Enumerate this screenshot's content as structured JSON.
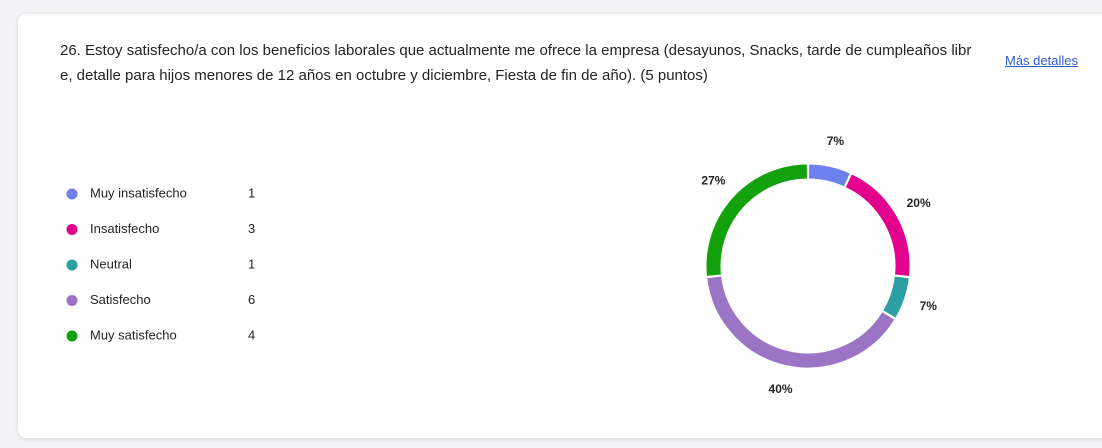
{
  "chart_data": {
    "type": "donut",
    "title": "26. Estoy satisfecho/a con los beneficios laborales que actualmente me ofrece la empresa (desayunos, Snacks, tarde de cumpleaños libre, detalle para hijos menores de 12 años en octubre y diciembre, Fiesta de fin de año). (5 puntos)",
    "link": "Más detalles",
    "categories": [
      "Muy insatisfecho",
      "Insatisfecho",
      "Neutral",
      "Satisfecho",
      "Muy satisfecho"
    ],
    "counts": [
      1,
      3,
      1,
      6,
      4
    ],
    "values": [
      7,
      20,
      7,
      40,
      27
    ],
    "value_labels": [
      "7%",
      "20%",
      "7%",
      "40%",
      "27%"
    ],
    "colors": [
      "#6d80ee",
      "#e3008c",
      "#2c9fa3",
      "#9b74c6",
      "#13a10e"
    ]
  }
}
